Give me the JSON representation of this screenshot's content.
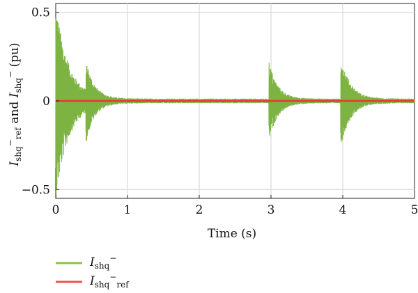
{
  "chart_data": {
    "type": "line",
    "title": "",
    "xlabel": "Time (s)",
    "ylabel": {
      "main1": "I",
      "sub1": "shq",
      "sup1": "−",
      "sub1b": "ref",
      "mid": " and ",
      "main2": "I",
      "sub2": "shq",
      "sup2": "−",
      "unit": " (pu)"
    },
    "xlim": [
      0,
      5
    ],
    "ylim": [
      -0.55,
      0.55
    ],
    "xticks": [
      0,
      1,
      2,
      3,
      4,
      5
    ],
    "xtick_labels": [
      "0",
      "1",
      "2",
      "3",
      "4",
      "5"
    ],
    "yticks": [
      -0.5,
      0,
      0.5
    ],
    "ytick_labels": [
      "−0.5",
      "0",
      "0.5"
    ],
    "grid": true,
    "legend_position": "below-left",
    "series": [
      {
        "name": "I_shq^-",
        "legend": {
          "main": "I",
          "sub": "shq",
          "sup": "−",
          "sub2": ""
        },
        "color": "#7cb342",
        "envelope_bursts": [
          {
            "t0": 0.0,
            "amp": 0.55,
            "decay": 0.18
          },
          {
            "t0": 0.42,
            "amp": 0.18,
            "decay": 0.1
          },
          {
            "t0": 2.97,
            "amp": 0.22,
            "decay": 0.12
          },
          {
            "t0": 3.97,
            "amp": 0.26,
            "decay": 0.13
          }
        ],
        "noise_floor": 0.013
      },
      {
        "name": "I_shq^-_ref",
        "legend": {
          "main": "I",
          "sub": "shq",
          "sup": "−",
          "sub2": "ref"
        },
        "color": "#e53935",
        "constant": 0
      }
    ]
  }
}
